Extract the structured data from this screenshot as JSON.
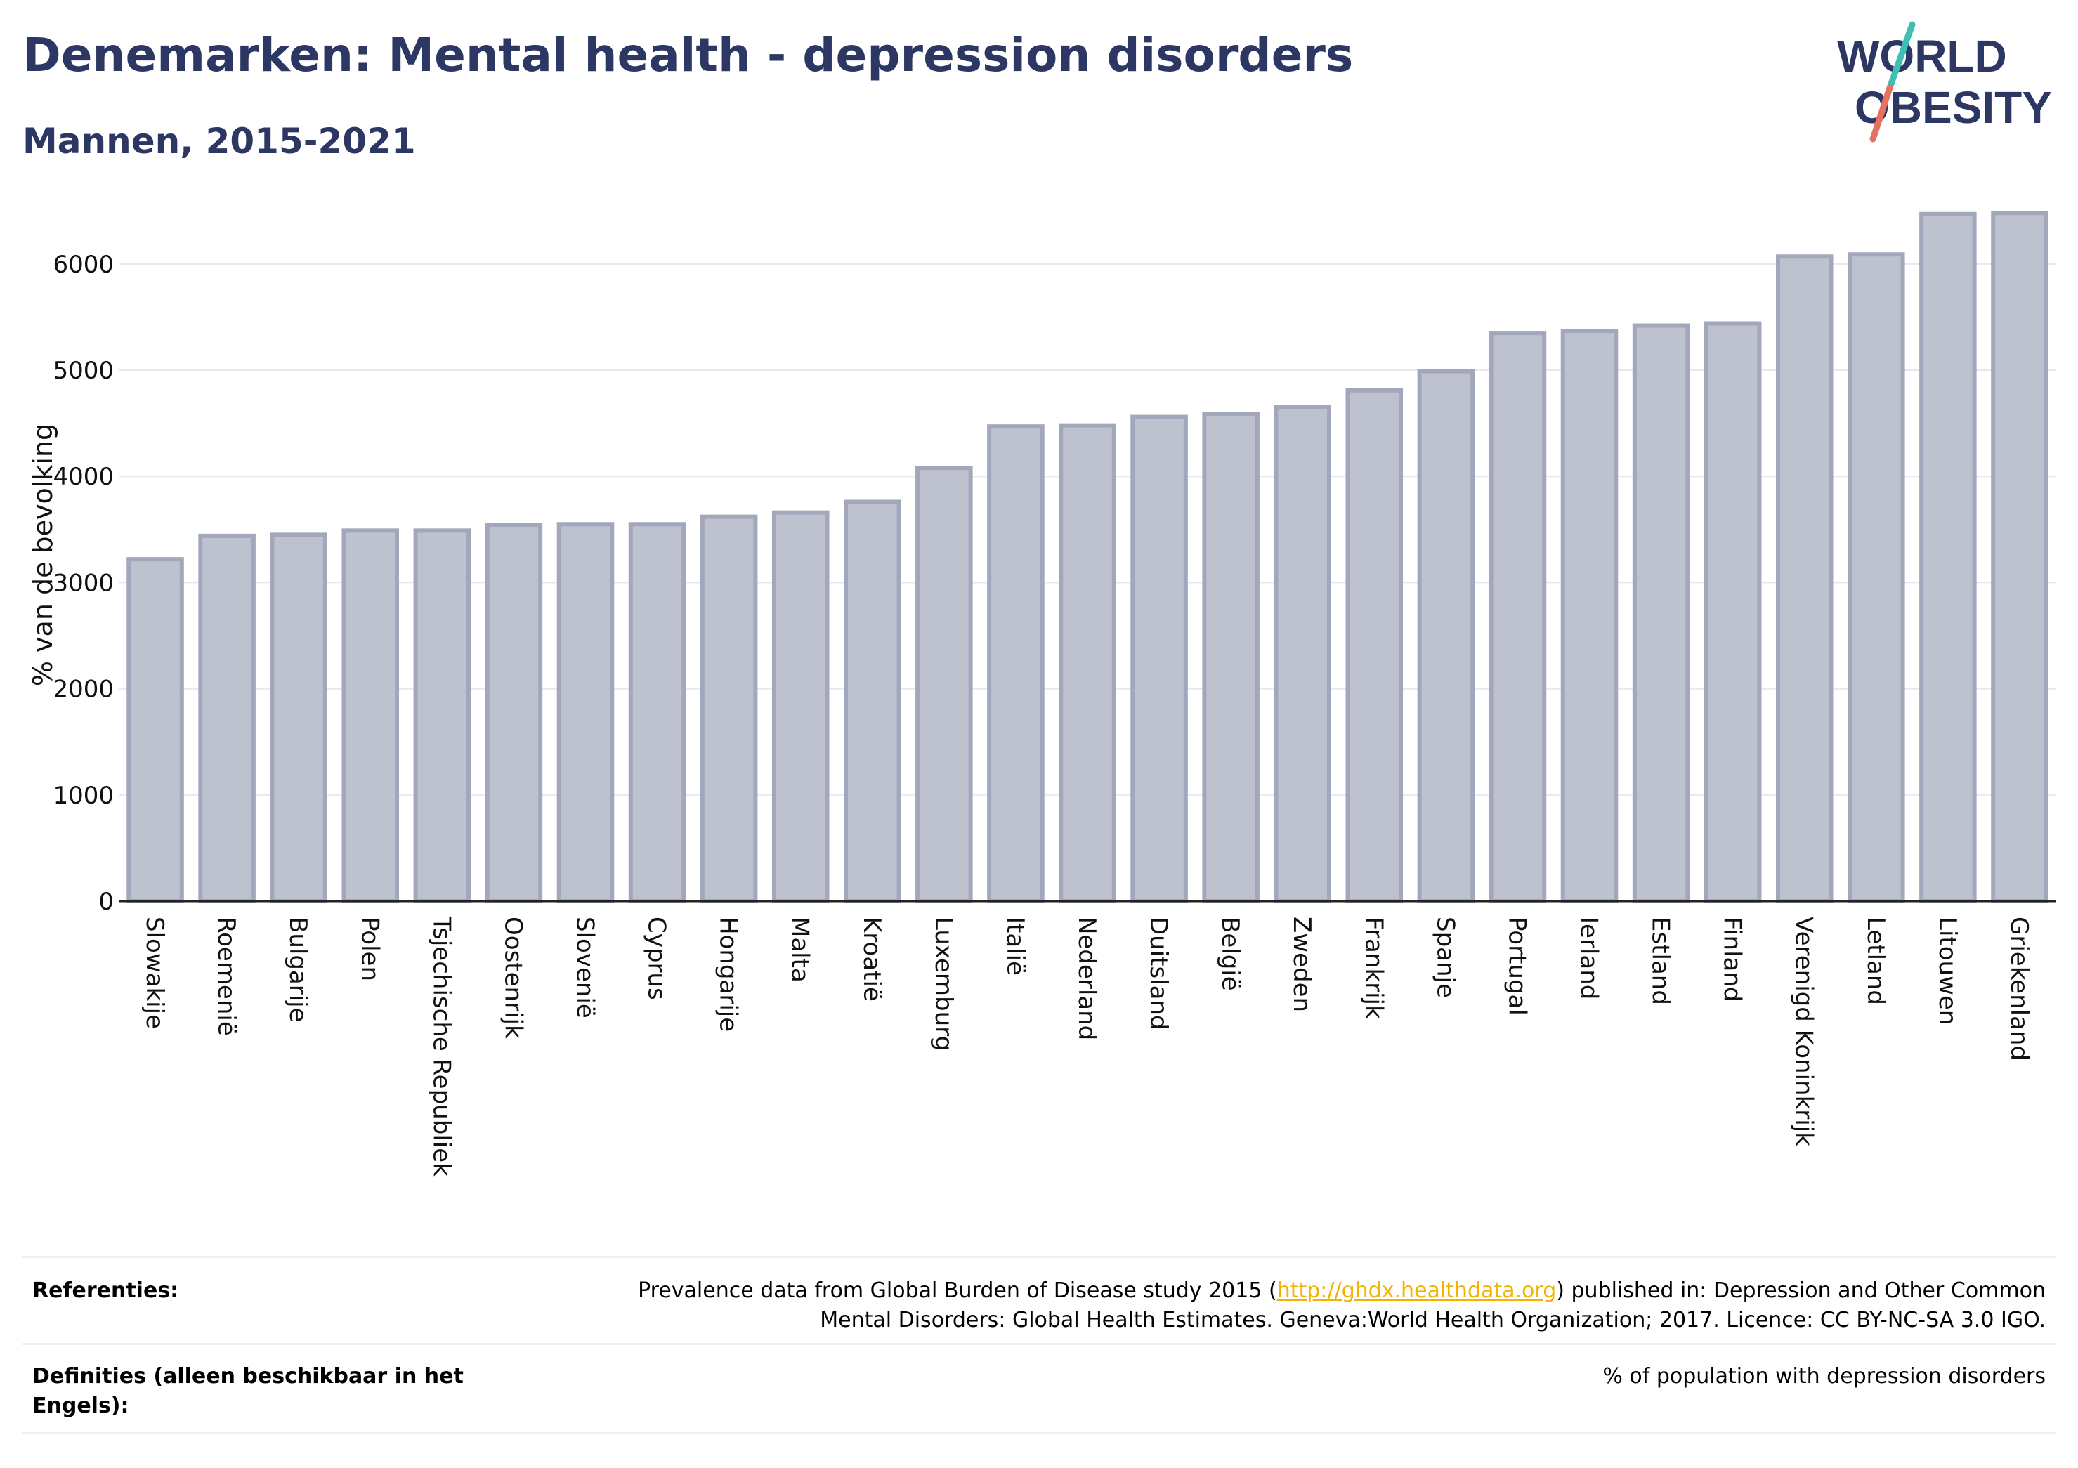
{
  "header": {
    "title": "Denemarken: Mental health - depression disorders",
    "subtitle": "Mannen, 2015-2021"
  },
  "logo": {
    "line1": "WORLD",
    "line2": "OBESITY",
    "colors": {
      "text": "#2c3863",
      "slash_teal": "#3fbfb4",
      "slash_coral": "#e8705f"
    }
  },
  "chart_data": {
    "type": "bar",
    "title": "",
    "xlabel": "",
    "ylabel": "% van de bevolking",
    "ylim": [
      0,
      6700
    ],
    "yticks": [
      0,
      1000,
      2000,
      3000,
      4000,
      5000,
      6000
    ],
    "grid": true,
    "bar_color": "#bec2cf",
    "bar_edge_color": "#a2a7bb",
    "categories": [
      "Slowakije",
      "Roemenië",
      "Bulgarije",
      "Polen",
      "Tsjechische Republiek",
      "Oostenrijk",
      "Slovenië",
      "Cyprus",
      "Hongarije",
      "Malta",
      "Kroatië",
      "Luxemburg",
      "Italië",
      "Nederland",
      "Duitsland",
      "België",
      "Zweden",
      "Frankrijk",
      "Spanje",
      "Portugal",
      "Ierland",
      "Estland",
      "Finland",
      "Verenigd Koninkrijk",
      "Letland",
      "Litouwen",
      "Griekenland"
    ],
    "values": [
      3220,
      3440,
      3450,
      3490,
      3490,
      3540,
      3550,
      3550,
      3620,
      3660,
      3760,
      4080,
      4470,
      4480,
      4560,
      4590,
      4650,
      4810,
      4990,
      5350,
      5370,
      5420,
      5440,
      6070,
      6090,
      6470,
      6480
    ]
  },
  "references": {
    "label": "Referenties:",
    "text_before": "Prevalence data from Global Burden of Disease study 2015 (",
    "link": "http://ghdx.healthdata.org",
    "text_after": ") published in: Depression and Other Common",
    "text_line2": "Mental Disorders: Global Health Estimates. Geneva:World Health Organization; 2017. Licence: CC BY-NC-SA 3.0 IGO."
  },
  "definitions": {
    "label_line1": "Definities (alleen beschikbaar in het",
    "label_line2": "Engels):",
    "text": "% of population with depression disorders"
  }
}
